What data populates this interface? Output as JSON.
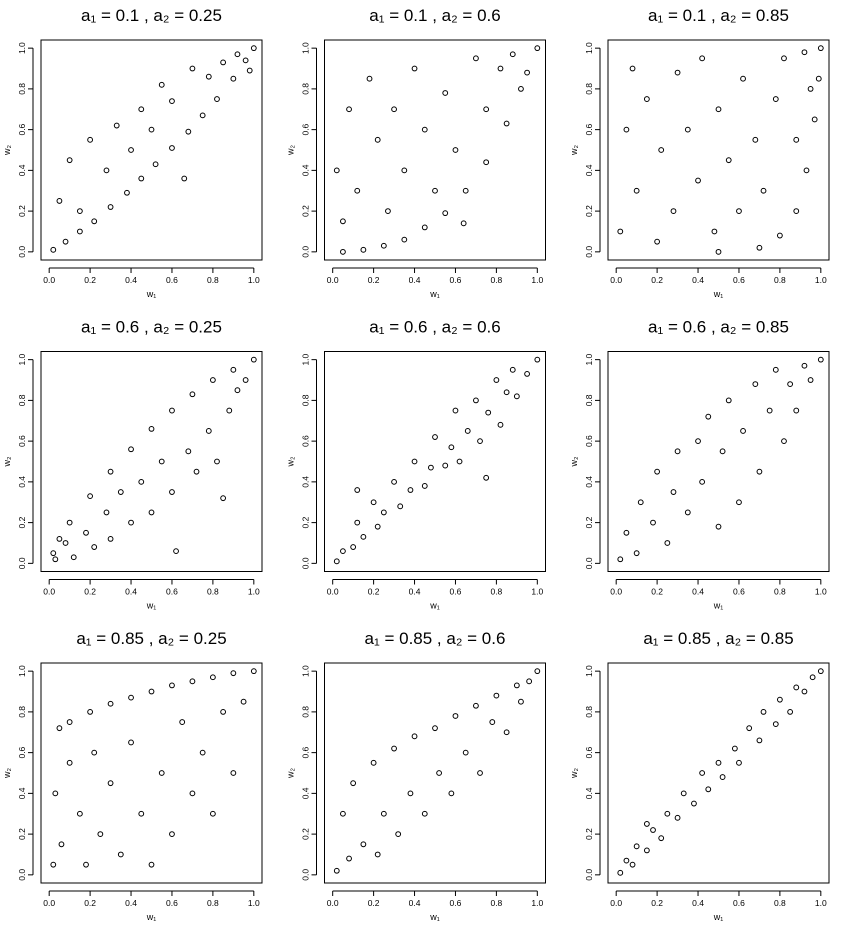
{
  "chart_data": [
    {
      "type": "scatter",
      "title": "a₁ = 0.1 , a₂ = 0.25",
      "xlabel": "w₁",
      "ylabel": "w₂",
      "x": [
        0.02,
        0.08,
        0.15,
        0.22,
        0.3,
        0.38,
        0.45,
        0.52,
        0.6,
        0.68,
        0.75,
        0.82,
        0.9,
        0.96,
        1.0,
        0.05,
        0.1,
        0.15,
        0.2,
        0.28,
        0.33,
        0.4,
        0.45,
        0.5,
        0.55,
        0.6,
        0.66,
        0.7,
        0.78,
        0.85,
        0.92,
        0.98
      ],
      "y": [
        0.01,
        0.05,
        0.1,
        0.15,
        0.22,
        0.29,
        0.36,
        0.43,
        0.51,
        0.59,
        0.67,
        0.75,
        0.85,
        0.94,
        1.0,
        0.25,
        0.45,
        0.2,
        0.55,
        0.4,
        0.62,
        0.5,
        0.7,
        0.6,
        0.82,
        0.74,
        0.36,
        0.9,
        0.86,
        0.93,
        0.97,
        0.89
      ],
      "xlim": [
        -0.04,
        1.04
      ],
      "ylim": [
        -0.04,
        1.04
      ],
      "xticks": [
        {
          "value": 0,
          "label": "0.0"
        },
        0.2,
        0.4,
        0.6,
        0.8,
        {
          "value": 1,
          "label": "1.0"
        }
      ],
      "yticks": [
        {
          "value": 0,
          "label": "0.0"
        },
        0.2,
        0.4,
        0.6,
        0.8,
        {
          "value": 1,
          "label": "1.0"
        }
      ]
    },
    {
      "type": "scatter",
      "title": "a₁ = 0.1 , a₂ = 0.6",
      "xlabel": "w₁",
      "ylabel": "w₂",
      "x": [
        0.05,
        0.15,
        0.25,
        0.35,
        0.45,
        0.55,
        0.65,
        0.75,
        0.85,
        0.92,
        1.0,
        0.02,
        0.05,
        0.08,
        0.12,
        0.18,
        0.22,
        0.27,
        0.3,
        0.35,
        0.4,
        0.45,
        0.5,
        0.55,
        0.6,
        0.64,
        0.7,
        0.75,
        0.82,
        0.88,
        0.95
      ],
      "y": [
        0.0,
        0.01,
        0.03,
        0.06,
        0.12,
        0.19,
        0.3,
        0.44,
        0.63,
        0.8,
        1.0,
        0.4,
        0.15,
        0.7,
        0.3,
        0.85,
        0.55,
        0.2,
        0.7,
        0.4,
        0.9,
        0.6,
        0.3,
        0.78,
        0.5,
        0.14,
        0.95,
        0.7,
        0.9,
        0.97,
        0.88
      ],
      "xlim": [
        -0.04,
        1.04
      ],
      "ylim": [
        -0.04,
        1.04
      ],
      "xticks": [
        {
          "value": 0,
          "label": "0.0"
        },
        0.2,
        0.4,
        0.6,
        0.8,
        {
          "value": 1,
          "label": "1.0"
        }
      ],
      "yticks": [
        {
          "value": 0,
          "label": "0.0"
        },
        0.2,
        0.4,
        0.6,
        0.8,
        {
          "value": 1,
          "label": "1.0"
        }
      ]
    },
    {
      "type": "scatter",
      "title": "a₁ = 0.1 , a₂ = 0.85",
      "xlabel": "w₁",
      "ylabel": "w₂",
      "x": [
        0.5,
        0.7,
        0.8,
        0.88,
        0.93,
        0.97,
        0.99,
        1.0,
        0.02,
        0.05,
        0.08,
        0.1,
        0.15,
        0.2,
        0.22,
        0.28,
        0.3,
        0.35,
        0.4,
        0.42,
        0.48,
        0.5,
        0.55,
        0.6,
        0.62,
        0.68,
        0.72,
        0.78,
        0.82,
        0.88,
        0.92,
        0.95
      ],
      "y": [
        0.0,
        0.02,
        0.08,
        0.2,
        0.4,
        0.65,
        0.85,
        1.0,
        0.1,
        0.6,
        0.9,
        0.3,
        0.75,
        0.05,
        0.5,
        0.2,
        0.88,
        0.6,
        0.35,
        0.95,
        0.1,
        0.7,
        0.45,
        0.2,
        0.85,
        0.55,
        0.3,
        0.75,
        0.95,
        0.55,
        0.98,
        0.8
      ],
      "xlim": [
        -0.04,
        1.04
      ],
      "ylim": [
        -0.04,
        1.04
      ],
      "xticks": [
        {
          "value": 0,
          "label": "0.0"
        },
        0.2,
        0.4,
        0.6,
        0.8,
        {
          "value": 1,
          "label": "1.0"
        }
      ],
      "yticks": [
        {
          "value": 0,
          "label": "0.0"
        },
        0.2,
        0.4,
        0.6,
        0.8,
        {
          "value": 1,
          "label": "1.0"
        }
      ]
    },
    {
      "type": "scatter",
      "title": "a₁ = 0.6 , a₂ = 0.25",
      "xlabel": "w₁",
      "ylabel": "w₂",
      "x": [
        0.02,
        0.05,
        0.1,
        0.2,
        0.3,
        0.4,
        0.5,
        0.6,
        0.7,
        0.8,
        0.9,
        1.0,
        0.03,
        0.08,
        0.12,
        0.18,
        0.22,
        0.28,
        0.3,
        0.35,
        0.4,
        0.45,
        0.5,
        0.55,
        0.6,
        0.62,
        0.68,
        0.72,
        0.78,
        0.82,
        0.88,
        0.92,
        0.96,
        0.85
      ],
      "y": [
        0.05,
        0.12,
        0.2,
        0.33,
        0.45,
        0.56,
        0.66,
        0.75,
        0.83,
        0.9,
        0.95,
        1.0,
        0.02,
        0.1,
        0.03,
        0.15,
        0.08,
        0.25,
        0.12,
        0.35,
        0.2,
        0.4,
        0.25,
        0.5,
        0.35,
        0.06,
        0.55,
        0.45,
        0.65,
        0.5,
        0.75,
        0.85,
        0.9,
        0.32
      ],
      "xlim": [
        -0.04,
        1.04
      ],
      "ylim": [
        -0.04,
        1.04
      ],
      "xticks": [
        {
          "value": 0,
          "label": "0.0"
        },
        0.2,
        0.4,
        0.6,
        0.8,
        {
          "value": 1,
          "label": "1.0"
        }
      ],
      "yticks": [
        {
          "value": 0,
          "label": "0.0"
        },
        0.2,
        0.4,
        0.6,
        0.8,
        {
          "value": 1,
          "label": "1.0"
        }
      ]
    },
    {
      "type": "scatter",
      "title": "a₁ = 0.6 , a₂ = 0.6",
      "xlabel": "w₁",
      "ylabel": "w₂",
      "x": [
        0.02,
        0.05,
        0.1,
        0.12,
        0.15,
        0.2,
        0.22,
        0.25,
        0.3,
        0.33,
        0.38,
        0.4,
        0.45,
        0.48,
        0.5,
        0.55,
        0.58,
        0.6,
        0.62,
        0.66,
        0.7,
        0.72,
        0.76,
        0.8,
        0.82,
        0.85,
        0.88,
        0.9,
        0.95,
        1.0,
        0.12,
        0.75
      ],
      "y": [
        0.01,
        0.06,
        0.08,
        0.2,
        0.13,
        0.3,
        0.18,
        0.25,
        0.4,
        0.28,
        0.36,
        0.5,
        0.38,
        0.47,
        0.62,
        0.48,
        0.57,
        0.75,
        0.5,
        0.65,
        0.8,
        0.6,
        0.74,
        0.9,
        0.68,
        0.84,
        0.95,
        0.82,
        0.93,
        1.0,
        0.36,
        0.42
      ],
      "xlim": [
        -0.04,
        1.04
      ],
      "ylim": [
        -0.04,
        1.04
      ],
      "xticks": [
        {
          "value": 0,
          "label": "0.0"
        },
        0.2,
        0.4,
        0.6,
        0.8,
        {
          "value": 1,
          "label": "1.0"
        }
      ],
      "yticks": [
        {
          "value": 0,
          "label": "0.0"
        },
        0.2,
        0.4,
        0.6,
        0.8,
        {
          "value": 1,
          "label": "1.0"
        }
      ]
    },
    {
      "type": "scatter",
      "title": "a₁ = 0.6 , a₂ = 0.85",
      "xlabel": "w₁",
      "ylabel": "w₂",
      "x": [
        0.02,
        0.05,
        0.1,
        0.12,
        0.18,
        0.2,
        0.25,
        0.28,
        0.3,
        0.35,
        0.4,
        0.42,
        0.45,
        0.5,
        0.52,
        0.55,
        0.6,
        0.62,
        0.68,
        0.7,
        0.75,
        0.78,
        0.82,
        0.85,
        0.88,
        0.92,
        0.95,
        1.0
      ],
      "y": [
        0.02,
        0.15,
        0.05,
        0.3,
        0.2,
        0.45,
        0.1,
        0.35,
        0.55,
        0.25,
        0.6,
        0.4,
        0.72,
        0.18,
        0.55,
        0.8,
        0.3,
        0.65,
        0.88,
        0.45,
        0.75,
        0.95,
        0.6,
        0.88,
        0.75,
        0.97,
        0.9,
        1.0
      ],
      "xlim": [
        -0.04,
        1.04
      ],
      "ylim": [
        -0.04,
        1.04
      ],
      "xticks": [
        {
          "value": 0,
          "label": "0.0"
        },
        0.2,
        0.4,
        0.6,
        0.8,
        {
          "value": 1,
          "label": "1.0"
        }
      ],
      "yticks": [
        {
          "value": 0,
          "label": "0.0"
        },
        0.2,
        0.4,
        0.6,
        0.8,
        {
          "value": 1,
          "label": "1.0"
        }
      ]
    },
    {
      "type": "scatter",
      "title": "a₁ = 0.85 , a₂ = 0.25",
      "xlabel": "w₁",
      "ylabel": "w₂",
      "x": [
        0.02,
        0.05,
        0.1,
        0.2,
        0.3,
        0.4,
        0.5,
        0.6,
        0.7,
        0.8,
        0.9,
        1.0,
        0.03,
        0.06,
        0.1,
        0.15,
        0.18,
        0.22,
        0.25,
        0.3,
        0.35,
        0.4,
        0.45,
        0.5,
        0.55,
        0.6,
        0.65,
        0.7,
        0.75,
        0.8,
        0.85,
        0.9,
        0.95
      ],
      "y": [
        0.05,
        0.72,
        0.75,
        0.8,
        0.84,
        0.87,
        0.9,
        0.93,
        0.95,
        0.97,
        0.99,
        1.0,
        0.4,
        0.15,
        0.55,
        0.3,
        0.05,
        0.6,
        0.2,
        0.45,
        0.1,
        0.65,
        0.3,
        0.05,
        0.5,
        0.2,
        0.75,
        0.4,
        0.6,
        0.3,
        0.8,
        0.5,
        0.85
      ],
      "xlim": [
        -0.04,
        1.04
      ],
      "ylim": [
        -0.04,
        1.04
      ],
      "xticks": [
        {
          "value": 0,
          "label": "0.0"
        },
        0.2,
        0.4,
        0.6,
        0.8,
        {
          "value": 1,
          "label": "1.0"
        }
      ],
      "yticks": [
        {
          "value": 0,
          "label": "0.0"
        },
        0.2,
        0.4,
        0.6,
        0.8,
        {
          "value": 1,
          "label": "1.0"
        }
      ]
    },
    {
      "type": "scatter",
      "title": "a₁ = 0.85 , a₂ = 0.6",
      "xlabel": "w₁",
      "ylabel": "w₂",
      "x": [
        0.02,
        0.05,
        0.08,
        0.1,
        0.15,
        0.2,
        0.22,
        0.25,
        0.3,
        0.32,
        0.38,
        0.4,
        0.45,
        0.5,
        0.52,
        0.58,
        0.6,
        0.65,
        0.7,
        0.72,
        0.78,
        0.8,
        0.85,
        0.9,
        0.92,
        0.96,
        1.0
      ],
      "y": [
        0.02,
        0.3,
        0.08,
        0.45,
        0.15,
        0.55,
        0.1,
        0.3,
        0.62,
        0.2,
        0.4,
        0.68,
        0.3,
        0.72,
        0.5,
        0.4,
        0.78,
        0.6,
        0.83,
        0.5,
        0.75,
        0.88,
        0.7,
        0.93,
        0.85,
        0.95,
        1.0
      ],
      "xlim": [
        -0.04,
        1.04
      ],
      "ylim": [
        -0.04,
        1.04
      ],
      "xticks": [
        {
          "value": 0,
          "label": "0.0"
        },
        0.2,
        0.4,
        0.6,
        0.8,
        {
          "value": 1,
          "label": "1.0"
        }
      ],
      "yticks": [
        {
          "value": 0,
          "label": "0.0"
        },
        0.2,
        0.4,
        0.6,
        0.8,
        {
          "value": 1,
          "label": "1.0"
        }
      ]
    },
    {
      "type": "scatter",
      "title": "a₁ = 0.85 , a₂ = 0.85",
      "xlabel": "w₁",
      "ylabel": "w₂",
      "x": [
        0.02,
        0.05,
        0.08,
        0.1,
        0.15,
        0.18,
        0.22,
        0.25,
        0.3,
        0.33,
        0.38,
        0.42,
        0.45,
        0.5,
        0.52,
        0.58,
        0.6,
        0.65,
        0.7,
        0.72,
        0.78,
        0.8,
        0.85,
        0.88,
        0.92,
        0.96,
        1.0,
        0.15
      ],
      "y": [
        0.01,
        0.07,
        0.05,
        0.14,
        0.12,
        0.22,
        0.18,
        0.3,
        0.28,
        0.4,
        0.35,
        0.5,
        0.42,
        0.55,
        0.48,
        0.62,
        0.55,
        0.72,
        0.66,
        0.8,
        0.74,
        0.86,
        0.8,
        0.92,
        0.9,
        0.97,
        1.0,
        0.25
      ],
      "xlim": [
        -0.04,
        1.04
      ],
      "ylim": [
        -0.04,
        1.04
      ],
      "xticks": [
        {
          "value": 0,
          "label": "0.0"
        },
        0.2,
        0.4,
        0.6,
        0.8,
        {
          "value": 1,
          "label": "1.0"
        }
      ],
      "yticks": [
        {
          "value": 0,
          "label": "0.0"
        },
        0.2,
        0.4,
        0.6,
        0.8,
        {
          "value": 1,
          "label": "1.0"
        }
      ]
    }
  ]
}
